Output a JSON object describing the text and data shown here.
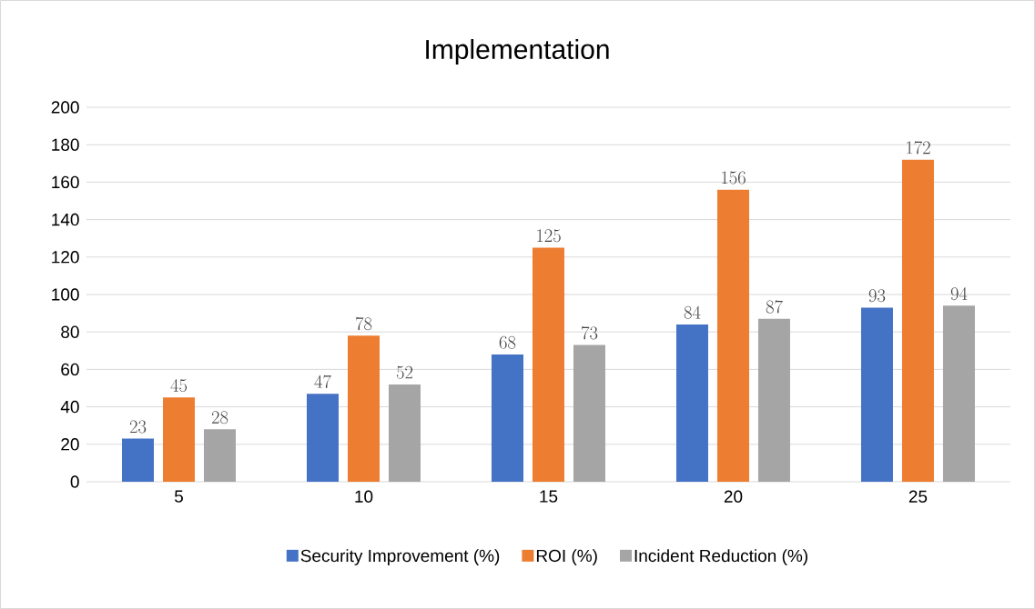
{
  "chart_data": {
    "type": "bar",
    "title": "Implementation",
    "categories": [
      "5",
      "10",
      "15",
      "20",
      "25"
    ],
    "series": [
      {
        "name": "Security Improvement (%)",
        "color": "#4472c4",
        "values": [
          23,
          47,
          68,
          84,
          93
        ]
      },
      {
        "name": "ROI (%)",
        "color": "#ed7d31",
        "values": [
          45,
          78,
          125,
          156,
          172
        ]
      },
      {
        "name": "Incident Reduction (%)",
        "color": "#a5a5a5",
        "values": [
          28,
          52,
          73,
          87,
          94
        ]
      }
    ],
    "ylim": [
      0,
      200
    ],
    "yticks": [
      0,
      20,
      40,
      60,
      80,
      100,
      120,
      140,
      160,
      180,
      200
    ],
    "grid": "y",
    "legend": "bottom",
    "data_labels": true
  }
}
